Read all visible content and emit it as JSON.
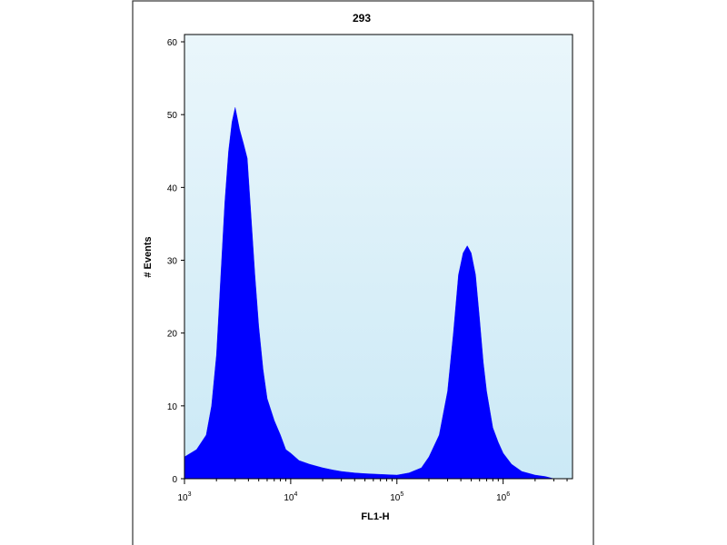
{
  "chart_data": {
    "type": "histogram",
    "title": "293",
    "xlabel": "FL1-H",
    "ylabel": "# Events",
    "x_scale": "log",
    "x_range": [
      1000,
      4500000
    ],
    "y_range": [
      0,
      61
    ],
    "y_ticks": [
      "0",
      "10",
      "20",
      "30",
      "40",
      "50",
      "60"
    ],
    "x_ticks": [
      {
        "value": 1000,
        "base": "10",
        "exp": "3"
      },
      {
        "value": 10000,
        "base": "10",
        "exp": "4"
      },
      {
        "value": 100000,
        "base": "10",
        "exp": "5"
      },
      {
        "value": 1000000,
        "base": "10",
        "exp": "6"
      }
    ],
    "grid": false,
    "colors": {
      "fill": "#0000ff",
      "plot_background_top": "#eaf6fb",
      "plot_background_bottom": "#cbe9f6",
      "frame": "#000000"
    },
    "series": [
      {
        "x": [
          1000,
          1300,
          1600,
          1800,
          2000,
          2200,
          2400,
          2600,
          2800,
          3000,
          3300,
          3600,
          3900,
          4200,
          4600,
          5000,
          5500,
          6000,
          7000,
          8000,
          9000,
          10000,
          12000,
          15000,
          20000,
          25000,
          30000,
          40000,
          50000,
          70000,
          100000,
          130000,
          170000,
          200000,
          250000,
          300000,
          340000,
          380000,
          420000,
          460000,
          500000,
          550000,
          600000,
          650000,
          700000,
          800000,
          900000,
          1000000,
          1200000,
          1500000,
          2000000,
          2500000,
          3000000
        ],
        "y": [
          3,
          4,
          6,
          10,
          17,
          28,
          38,
          45,
          49,
          51,
          48,
          46,
          44,
          37,
          28,
          21,
          15,
          11,
          8,
          6,
          4,
          3.5,
          2.5,
          2,
          1.5,
          1.2,
          1,
          0.8,
          0.7,
          0.6,
          0.5,
          0.8,
          1.5,
          3,
          6,
          12,
          20,
          28,
          31,
          32,
          31,
          28,
          22,
          16,
          12,
          7,
          5,
          3.5,
          2,
          1,
          0.5,
          0.3,
          0
        ]
      }
    ]
  }
}
